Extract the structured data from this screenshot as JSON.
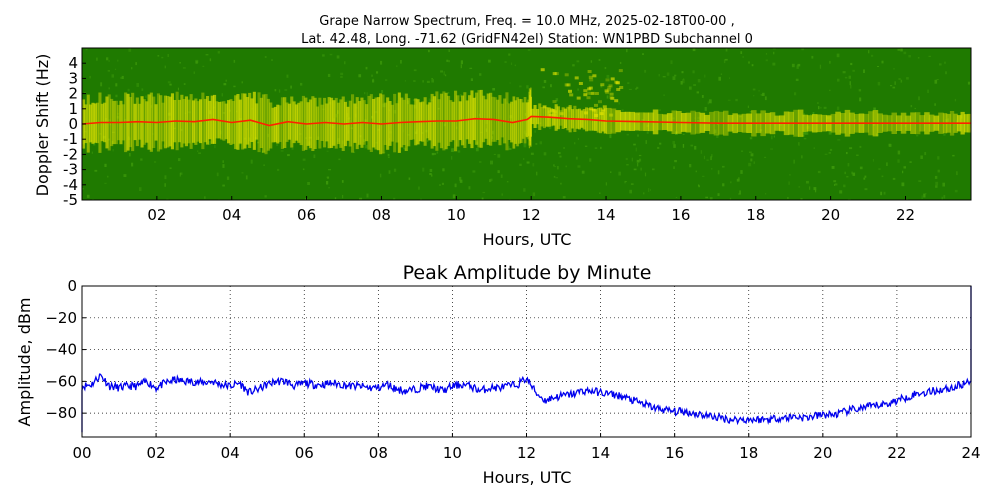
{
  "figure": {
    "title_line1": "Grape Narrow Spectrum, Freq. = 10.0 MHz, 2025-02-18T00-00 ,",
    "title_line2": "Lat.  42.48, Long. -71.62 (GridFN42el) Station: WN1PBD Subchannel 0"
  },
  "chart_data": [
    {
      "type": "heatmap",
      "title": "Grape Narrow Spectrum, Freq. = 10.0 MHz, 2025-02-18T00-00 , Lat.  42.48, Long. -71.62 (GridFN42el) Station: WN1PBD Subchannel 0",
      "xlabel": "Hours, UTC",
      "ylabel": "Doppler Shift (Hz)",
      "xlim": [
        0,
        23.75
      ],
      "ylim": [
        -5,
        5
      ],
      "xticks": [
        2,
        4,
        6,
        8,
        10,
        12,
        14,
        16,
        18,
        20,
        22
      ],
      "xtick_labels": [
        "02",
        "04",
        "06",
        "08",
        "10",
        "12",
        "14",
        "16",
        "18",
        "20",
        "22"
      ],
      "yticks": [
        4,
        3,
        2,
        1,
        0,
        -1,
        -2,
        -3,
        -4,
        -5
      ],
      "ytick_labels": [
        "4",
        "3",
        "2",
        "1",
        "0",
        "-1",
        "-2",
        "-3",
        "-4",
        "-5"
      ],
      "colors": {
        "background": "#1f7a00",
        "noise": "#3d9a0a",
        "signal": "#e6e600",
        "peak": "#ff2000"
      },
      "doppler_trace": {
        "hours": [
          0,
          0.5,
          1,
          1.5,
          2,
          2.5,
          3,
          3.5,
          4,
          4.5,
          5,
          5.5,
          6,
          6.5,
          7,
          7.5,
          8,
          8.5,
          9,
          9.5,
          10,
          10.5,
          11,
          11.5,
          11.9,
          12,
          12.5,
          13,
          13.5,
          14,
          15,
          16,
          17,
          18,
          19,
          20,
          21,
          22,
          23,
          23.75
        ],
        "shift_hz": [
          0,
          0.1,
          0.1,
          0.15,
          0.1,
          0.2,
          0.15,
          0.3,
          0.1,
          0.25,
          -0.1,
          0.15,
          0,
          0.1,
          0,
          0.1,
          0,
          0.1,
          0.15,
          0.2,
          0.2,
          0.35,
          0.3,
          0.1,
          0.3,
          0.5,
          0.45,
          0.35,
          0.3,
          0.2,
          0.15,
          0.1,
          0.05,
          0.05,
          0.05,
          0.05,
          0.05,
          0.05,
          0.05,
          0.05
        ]
      }
    },
    {
      "type": "line",
      "title": "Peak Amplitude by Minute",
      "xlabel": "Hours, UTC",
      "ylabel": "Amplitude, dBm",
      "xlim": [
        0,
        24
      ],
      "ylim": [
        -95,
        0
      ],
      "xticks": [
        0,
        2,
        4,
        6,
        8,
        10,
        12,
        14,
        16,
        18,
        20,
        22,
        24
      ],
      "xtick_labels": [
        "00",
        "02",
        "04",
        "06",
        "08",
        "10",
        "12",
        "14",
        "16",
        "18",
        "20",
        "22",
        "24"
      ],
      "yticks": [
        0,
        -20,
        -40,
        -60,
        -80
      ],
      "ytick_labels": [
        "0",
        "−20",
        "−40",
        "−60",
        "−80"
      ],
      "grid": true,
      "color": "#0000ee",
      "x": [
        0,
        0.25,
        0.5,
        0.75,
        1,
        1.25,
        1.5,
        1.75,
        2,
        2.25,
        2.5,
        2.75,
        3,
        3.25,
        3.5,
        3.75,
        4,
        4.25,
        4.5,
        4.75,
        5,
        5.25,
        5.5,
        5.75,
        6,
        6.25,
        6.5,
        6.75,
        7,
        7.25,
        7.5,
        7.75,
        8,
        8.25,
        8.5,
        8.75,
        9,
        9.25,
        9.5,
        9.75,
        10,
        10.25,
        10.5,
        10.75,
        11,
        11.25,
        11.5,
        11.75,
        12,
        12.25,
        12.5,
        12.75,
        13,
        13.25,
        13.5,
        13.75,
        14,
        14.25,
        14.5,
        14.75,
        15,
        15.25,
        15.5,
        15.75,
        16,
        16.25,
        16.5,
        16.75,
        17,
        17.25,
        17.5,
        17.75,
        18,
        18.25,
        18.5,
        18.75,
        19,
        19.25,
        19.5,
        19.75,
        20,
        20.25,
        20.5,
        20.75,
        21,
        21.25,
        21.5,
        21.75,
        22,
        22.25,
        22.5,
        22.75,
        23,
        23.25,
        23.5,
        23.75,
        24
      ],
      "y": [
        -63,
        -62,
        -56,
        -63,
        -64,
        -63,
        -63,
        -60,
        -64,
        -61,
        -59,
        -60,
        -60,
        -61,
        -60,
        -62,
        -63,
        -61,
        -67,
        -65,
        -62,
        -60,
        -60,
        -63,
        -61,
        -62,
        -62,
        -61,
        -62,
        -63,
        -63,
        -64,
        -64,
        -62,
        -65,
        -66,
        -65,
        -63,
        -64,
        -66,
        -63,
        -62,
        -63,
        -66,
        -64,
        -64,
        -63,
        -62,
        -58,
        -67,
        -72,
        -70,
        -69,
        -68,
        -66,
        -66,
        -67,
        -68,
        -69,
        -71,
        -73,
        -75,
        -77,
        -78,
        -79,
        -79,
        -80,
        -81,
        -82,
        -83,
        -84,
        -84,
        -84,
        -84,
        -84,
        -83,
        -83,
        -82,
        -83,
        -82,
        -81,
        -81,
        -80,
        -78,
        -77,
        -76,
        -75,
        -74,
        -72,
        -70,
        -68,
        -67,
        -66,
        -65,
        -64,
        -62,
        -60
      ]
    }
  ]
}
